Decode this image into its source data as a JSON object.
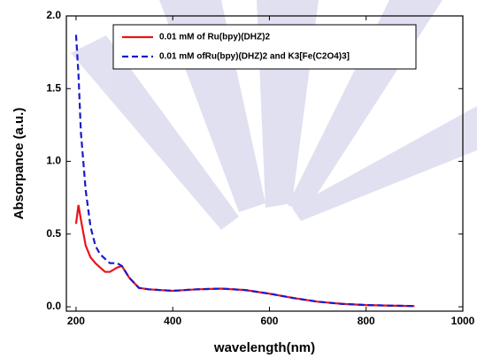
{
  "chart_data": {
    "type": "line",
    "x_label": "wavelength(nm)",
    "y_label": "Absorpance (a.u.)",
    "x": [
      200,
      205,
      210,
      220,
      230,
      240,
      250,
      260,
      270,
      285,
      295,
      310,
      330,
      350,
      400,
      450,
      500,
      550,
      600,
      650,
      700,
      750,
      800,
      850,
      900
    ],
    "series": [
      {
        "name": "0.01 mM of Ru(bpy)(DHZ)2",
        "color": "#e8141b",
        "dash": false,
        "values": [
          0.57,
          0.7,
          0.6,
          0.42,
          0.34,
          0.3,
          0.27,
          0.24,
          0.24,
          0.27,
          0.28,
          0.2,
          0.13,
          0.12,
          0.11,
          0.12,
          0.125,
          0.115,
          0.09,
          0.06,
          0.035,
          0.02,
          0.012,
          0.008,
          0.005
        ]
      },
      {
        "name": "0.01 mM ofRu(bpy)(DHZ)2 and K3[Fe(C2O4)3]",
        "color": "#1a1acc",
        "dash": true,
        "values": [
          1.87,
          1.6,
          1.2,
          0.8,
          0.55,
          0.42,
          0.36,
          0.33,
          0.3,
          0.3,
          0.28,
          0.2,
          0.13,
          0.12,
          0.11,
          0.12,
          0.125,
          0.115,
          0.09,
          0.06,
          0.035,
          0.02,
          0.012,
          0.008,
          0.005
        ]
      }
    ],
    "xlim": [
      180,
      1000
    ],
    "ylim": [
      -0.03,
      2.0
    ],
    "xticks": [
      200,
      400,
      600,
      800,
      1000
    ],
    "yticks": [
      {
        "value": 0.0,
        "label": "0.0"
      },
      {
        "value": 0.5,
        "label": "0.5"
      },
      {
        "value": 1.0,
        "label": "1.0"
      },
      {
        "value": 1.5,
        "label": "1.5"
      },
      {
        "value": 2.0,
        "label": "2.0"
      }
    ],
    "legend": "upper right"
  }
}
